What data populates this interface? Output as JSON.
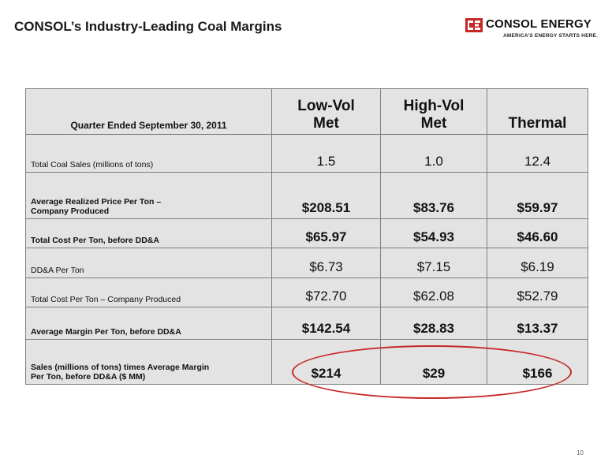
{
  "slide": {
    "title": "CONSOL’s Industry-Leading Coal Margins",
    "page_number": "10"
  },
  "logo": {
    "name": "CONSOL ENERGY",
    "tagline": "AMERICA’S ENERGY STARTS HERE.",
    "brand_color": "#c62828"
  },
  "table": {
    "header_label": "Quarter Ended September 30, 2011",
    "columns": [
      {
        "line1": "Low-Vol",
        "line2": "Met"
      },
      {
        "line1": "High-Vol",
        "line2": "Met"
      },
      {
        "line1": "",
        "line2": "Thermal"
      }
    ],
    "rows": [
      {
        "label_line1": "Total Coal Sales (millions of tons)",
        "label_line2": "",
        "bold": false,
        "values": [
          "1.5",
          "1.0",
          "12.4"
        ]
      },
      {
        "label_line1": "Average Realized Price Per Ton –",
        "label_line2": "Company Produced",
        "bold": true,
        "values": [
          "$208.51",
          "$83.76",
          "$59.97"
        ]
      },
      {
        "label_line1": "Total Cost Per Ton, before DD&A",
        "label_line2": "",
        "bold": true,
        "values": [
          "$65.97",
          "$54.93",
          "$46.60"
        ]
      },
      {
        "label_line1": "DD&A Per Ton",
        "label_line2": "",
        "bold": false,
        "values": [
          "$6.73",
          "$7.15",
          "$6.19"
        ]
      },
      {
        "label_line1": "Total Cost Per Ton – Company Produced",
        "label_line2": "",
        "bold": false,
        "values": [
          "$72.70",
          "$62.08",
          "$52.79"
        ]
      },
      {
        "label_line1": "Average Margin Per Ton, before DD&A",
        "label_line2": "",
        "bold": true,
        "values": [
          "$142.54",
          "$28.83",
          "$13.37"
        ]
      },
      {
        "label_line1": "Sales (millions of tons) times Average Margin",
        "label_line2": "Per Ton, before DD&A ($ MM)",
        "bold": true,
        "values": [
          "$214",
          "$29",
          "$166"
        ]
      }
    ]
  },
  "highlight": {
    "color": "#c62828"
  }
}
